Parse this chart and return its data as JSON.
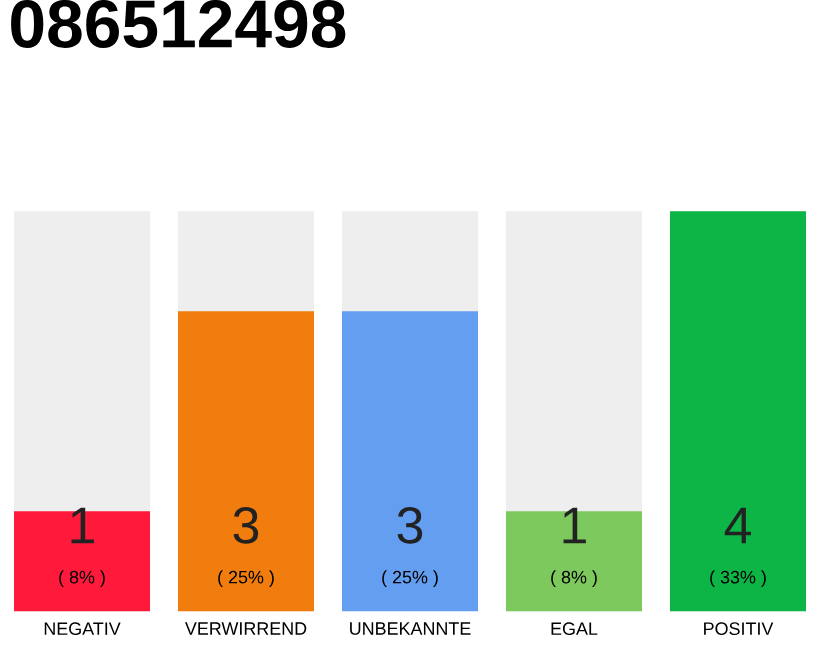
{
  "chart_data": {
    "type": "bar",
    "title": "086512498",
    "categories": [
      "NEGATIV",
      "VERWIRREND",
      "UNBEKANNTE",
      "EGAL",
      "POSITIV"
    ],
    "values": [
      1,
      3,
      3,
      1,
      4
    ],
    "colors": [
      "#ff1a3c",
      "#f07d0d",
      "#649ef0",
      "#7dc95d",
      "#0db446"
    ],
    "ylim": [
      0,
      4
    ],
    "data_labels": true,
    "annotations": [
      "( 8% )",
      "( 25% )",
      "( 25% )",
      "( 8% )",
      "( 33% )"
    ]
  }
}
